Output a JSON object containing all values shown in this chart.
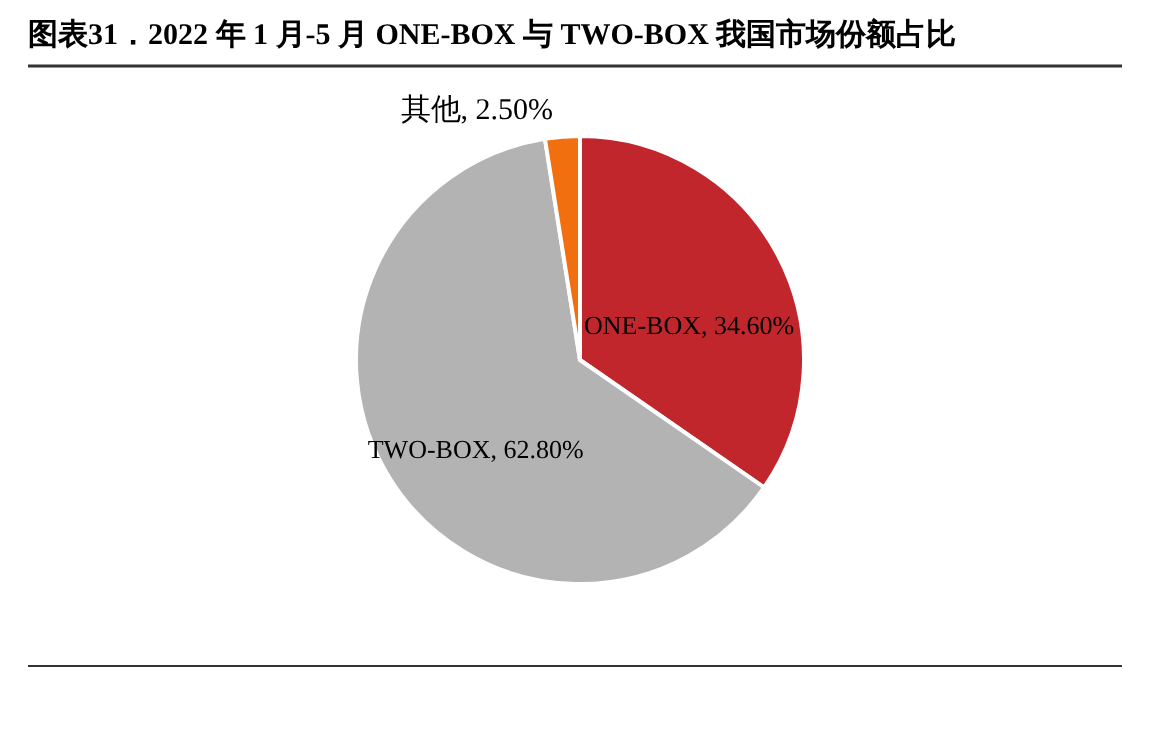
{
  "chart_data": {
    "type": "pie",
    "title": "图表31．2022 年 1 月-5 月 ONE-BOX 与 TWO-BOX 我国市场份额占比",
    "categories": [
      "ONE-BOX",
      "TWO-BOX",
      "其他"
    ],
    "values": [
      34.6,
      62.8,
      2.5
    ],
    "value_labels": [
      "34.60%",
      "62.80%",
      "2.50%"
    ],
    "colors": [
      "#c0262c",
      "#b3b3b3",
      "#f26f0f"
    ],
    "legend": false
  }
}
